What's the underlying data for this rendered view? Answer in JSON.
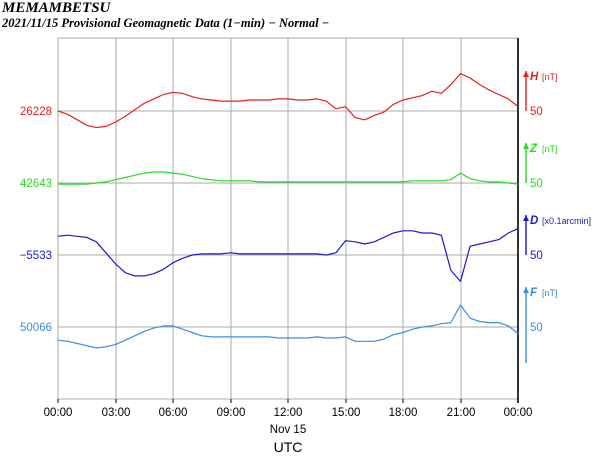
{
  "station": "MEMAMBETSU",
  "subtitle": "2021/11/15  Provisional Geomagnetic Data (1−min)  − Normal −",
  "chart_data": {
    "type": "line",
    "grid": true,
    "xlim": [
      0,
      24
    ],
    "x_ticks": [
      "00:00",
      "03:00",
      "06:00",
      "09:00",
      "12:00",
      "15:00",
      "18:00",
      "21:00",
      "00:00"
    ],
    "x_date_label": "Nov 15",
    "xlabel": "UTC",
    "scale_value": "50",
    "series": [
      {
        "name": "H",
        "unit": "[nT]",
        "baseline_label": "26228",
        "color": "#e8201e",
        "x": [
          0,
          0.5,
          1,
          1.5,
          2,
          2.5,
          3,
          3.5,
          4,
          4.5,
          5,
          5.5,
          6,
          6.5,
          7,
          7.5,
          8,
          8.5,
          9,
          9.5,
          10,
          10.5,
          11,
          11.5,
          12,
          12.5,
          13,
          13.5,
          14,
          14.5,
          15,
          15.5,
          16,
          16.5,
          17,
          17.5,
          18,
          18.5,
          19,
          19.5,
          20,
          20.5,
          21,
          21.5,
          22,
          22.5,
          23,
          23.5,
          24
        ],
        "values": [
          0,
          -3,
          -8,
          -13,
          -15,
          -14,
          -10,
          -5,
          1,
          7,
          11,
          15,
          17,
          16,
          13,
          11,
          10,
          9,
          9,
          9,
          10,
          10,
          10,
          11,
          11,
          10,
          10,
          11,
          9,
          2,
          4,
          -6,
          -8,
          -4,
          -1,
          6,
          10,
          12,
          14,
          18,
          16,
          24,
          34,
          30,
          24,
          19,
          15,
          11,
          4
        ]
      },
      {
        "name": "Z",
        "unit": "[nT]",
        "baseline_label": "42643",
        "color": "#22dd22",
        "x": [
          0,
          0.5,
          1,
          1.5,
          2,
          2.5,
          3,
          3.5,
          4,
          4.5,
          5,
          5.5,
          6,
          6.5,
          7,
          7.5,
          8,
          8.5,
          9,
          9.5,
          10,
          10.5,
          11,
          11.5,
          12,
          12.5,
          13,
          13.5,
          14,
          14.5,
          15,
          15.5,
          16,
          16.5,
          17,
          17.5,
          18,
          18.5,
          19,
          19.5,
          20,
          20.5,
          21,
          21.5,
          22,
          22.5,
          23,
          23.5,
          24
        ],
        "values": [
          -1,
          -1,
          -1,
          -1,
          0,
          1,
          3,
          5,
          7,
          9,
          10,
          10,
          9,
          8,
          6,
          4,
          3,
          2,
          2,
          2,
          2,
          1,
          1,
          1,
          1,
          1,
          1,
          1,
          1,
          1,
          1,
          1,
          1,
          1,
          1,
          1,
          1,
          2,
          2,
          2,
          2,
          3,
          9,
          4,
          2,
          1,
          1,
          0,
          -1
        ]
      },
      {
        "name": "D",
        "unit": "[x0.1arcmin]",
        "baseline_label": "−5533",
        "color": "#1a1acc",
        "x": [
          0,
          0.5,
          1,
          1.5,
          2,
          2.5,
          3,
          3.5,
          4,
          4.5,
          5,
          5.5,
          6,
          6.5,
          7,
          7.5,
          8,
          8.5,
          9,
          9.5,
          10,
          10.5,
          11,
          11.5,
          12,
          12.5,
          13,
          13.5,
          14,
          14.5,
          15,
          15.5,
          16,
          16.5,
          17,
          17.5,
          18,
          18.5,
          19,
          19.5,
          20,
          20.5,
          21,
          21.5,
          22,
          22.5,
          23,
          23.5,
          24
        ],
        "values": [
          17,
          18,
          17,
          16,
          12,
          2,
          -8,
          -16,
          -19,
          -19,
          -17,
          -13,
          -7,
          -3,
          0,
          1,
          1,
          1,
          2,
          1,
          1,
          1,
          1,
          1,
          1,
          1,
          1,
          1,
          0,
          2,
          13,
          12,
          10,
          12,
          16,
          20,
          22,
          22,
          20,
          20,
          18,
          -14,
          -24,
          8,
          10,
          12,
          14,
          20,
          24
        ]
      },
      {
        "name": "F",
        "unit": "[nT]",
        "baseline_label": "50066",
        "color": "#3a8ee0",
        "x": [
          0,
          0.5,
          1,
          1.5,
          2,
          2.5,
          3,
          3.5,
          4,
          4.5,
          5,
          5.5,
          6,
          6.5,
          7,
          7.5,
          8,
          8.5,
          9,
          9.5,
          10,
          10.5,
          11,
          11.5,
          12,
          12.5,
          13,
          13.5,
          14,
          14.5,
          15,
          15.5,
          16,
          16.5,
          17,
          17.5,
          18,
          18.5,
          19,
          19.5,
          20,
          20.5,
          21,
          21.5,
          22,
          22.5,
          23,
          23.5,
          24
        ],
        "values": [
          -12,
          -13,
          -15,
          -17,
          -19,
          -18,
          -16,
          -12,
          -8,
          -4,
          -1,
          1,
          1,
          -2,
          -5,
          -8,
          -9,
          -9,
          -9,
          -9,
          -9,
          -9,
          -9,
          -10,
          -10,
          -10,
          -10,
          -9,
          -10,
          -10,
          -9,
          -13,
          -13,
          -13,
          -11,
          -7,
          -5,
          -2,
          0,
          1,
          3,
          4,
          20,
          8,
          5,
          4,
          4,
          1,
          -6
        ]
      }
    ]
  }
}
